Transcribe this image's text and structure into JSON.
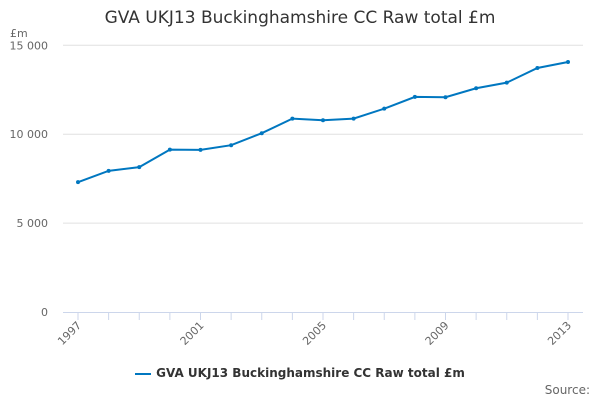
{
  "chart_data": {
    "type": "line",
    "title": "GVA UKJ13 Buckinghamshire CC Raw total £m",
    "ylabel": "£m",
    "xlabel": "",
    "x": [
      1997,
      1998,
      1999,
      2000,
      2001,
      2002,
      2003,
      2004,
      2005,
      2006,
      2007,
      2008,
      2009,
      2010,
      2011,
      2012,
      2013
    ],
    "series": [
      {
        "name": "GVA UKJ13 Buckinghamshire CC Raw total £m",
        "color": "#0077c0",
        "values": [
          7303,
          7938,
          8146,
          9135,
          9118,
          9382,
          10056,
          10876,
          10787,
          10876,
          11438,
          12096,
          12079,
          12584,
          12899,
          13725,
          14062
        ]
      }
    ],
    "ylim": [
      0,
      15000
    ],
    "yticks": [
      0,
      5000,
      10000,
      15000
    ],
    "ytick_labels": [
      "0",
      "5 000",
      "10 000",
      "15 000"
    ],
    "xticks": [
      1997,
      2001,
      2005,
      2009,
      2013
    ],
    "xtick_labels": [
      "1997",
      "2001",
      "2005",
      "2009",
      "2013"
    ],
    "grid": true,
    "legend": "bottom"
  },
  "source_label": "Source:"
}
